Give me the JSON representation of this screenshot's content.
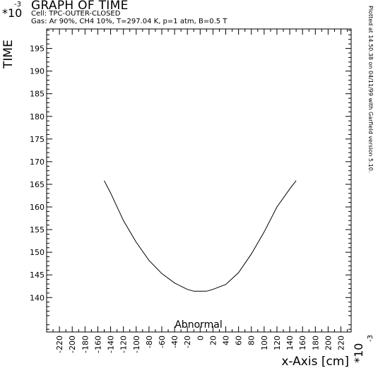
{
  "header": {
    "title": "GRAPH OF TIME",
    "cell_line": "Cell: TPC-OUTER-CLOSED",
    "gas_line": "Gas: Ar 90%, CH4 10%, T=297.04 K, p=1 atm, B=0.5 T",
    "plotted_note": "Plotted at 14.50.38 on 04/11/99 with Garfield version 5.10."
  },
  "chart_data": {
    "type": "line",
    "title": "GRAPH OF TIME",
    "xlabel": "x-Axis [cm]",
    "ylabel": "TIME",
    "x_multiplier": "*10",
    "x_multiplier_exp": "-3",
    "y_multiplier": "*10",
    "y_multiplier_exp": "-3",
    "xlim": [
      -240,
      236
    ],
    "ylim": [
      132.4,
      199.3
    ],
    "xticks": [
      -220,
      -200,
      -180,
      -160,
      -140,
      -120,
      -100,
      -80,
      -60,
      -40,
      -20,
      0,
      20,
      40,
      60,
      80,
      100,
      120,
      140,
      160,
      180,
      200,
      220
    ],
    "yticks": [
      140,
      145,
      150,
      155,
      160,
      165,
      170,
      175,
      180,
      185,
      190,
      195
    ],
    "grid": false,
    "annotation": "Abnormal",
    "series": [
      {
        "x": [
          -150,
          -140,
          -120,
          -100,
          -80,
          -60,
          -40,
          -20,
          -10,
          10,
          20,
          40,
          60,
          80,
          100,
          120,
          140,
          150
        ],
        "y": [
          165.8,
          163.1,
          157.0,
          152.2,
          148.2,
          145.3,
          143.2,
          141.8,
          141.4,
          141.4,
          141.8,
          142.9,
          145.5,
          149.6,
          154.5,
          160.0,
          164.0,
          165.8
        ]
      }
    ]
  }
}
